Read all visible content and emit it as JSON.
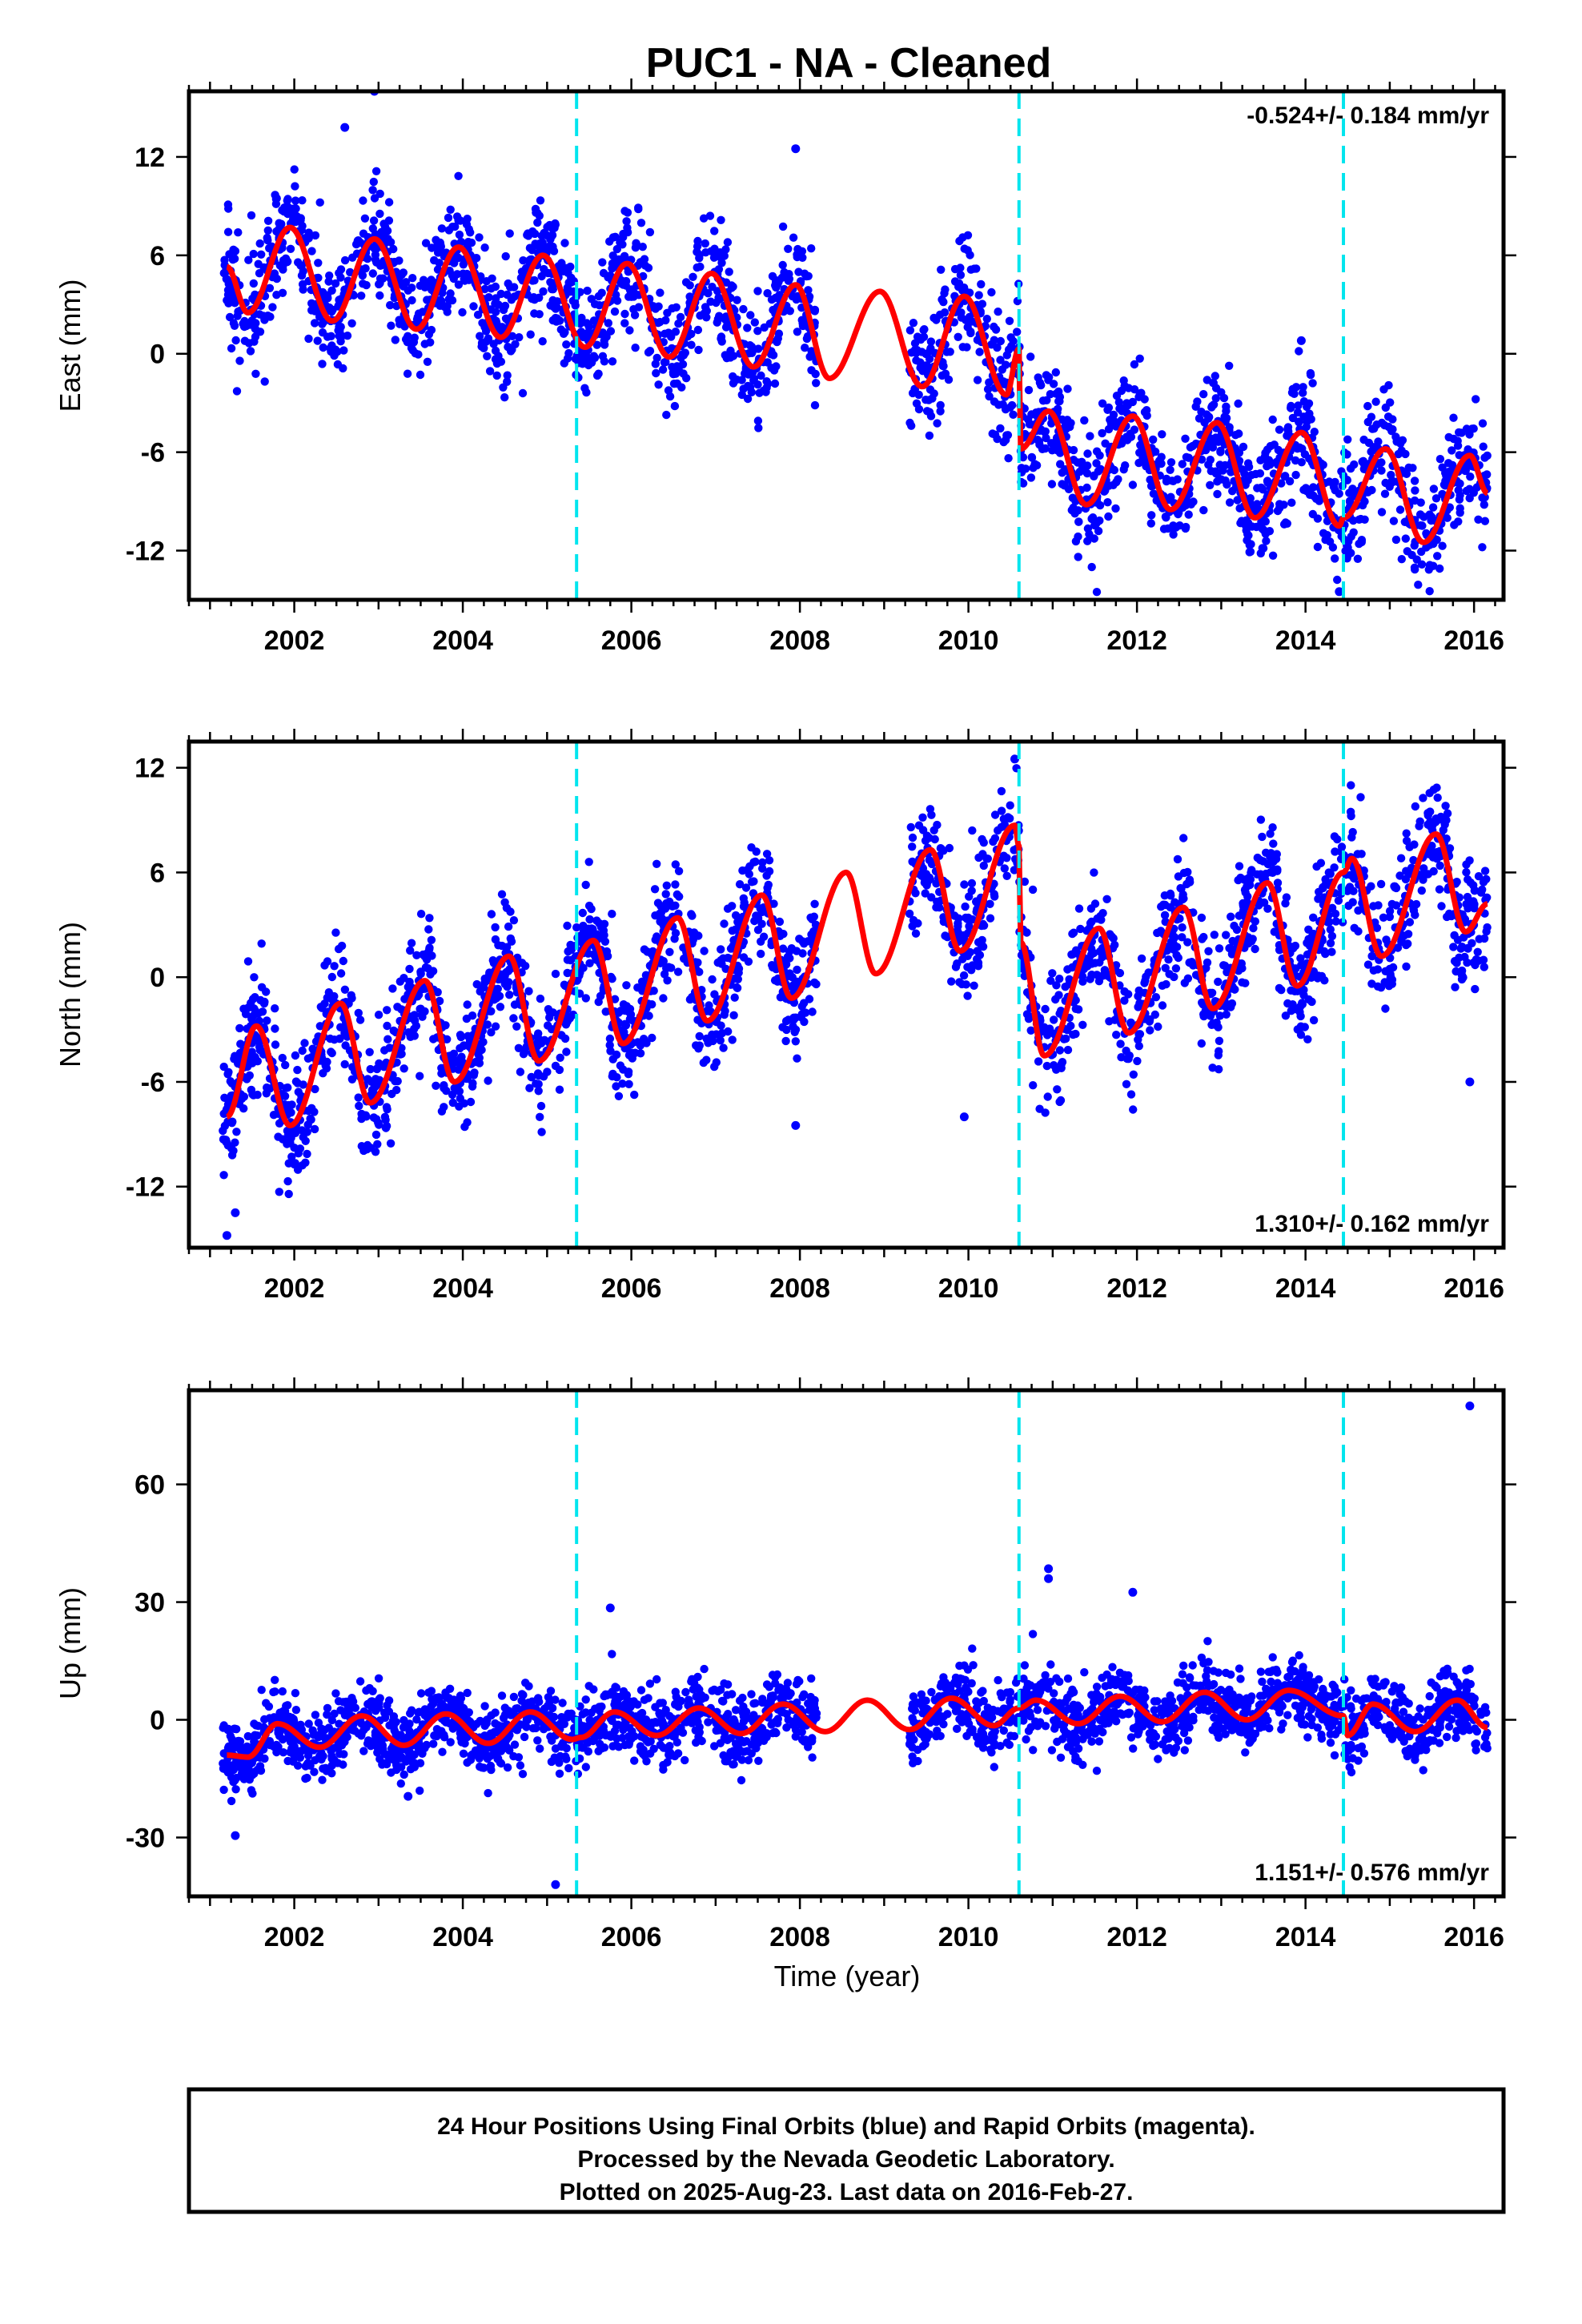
{
  "title": "PUC1  - NA - Cleaned",
  "xlabel": "Time (year)",
  "footer": {
    "line1": "24 Hour Positions Using Final Orbits (blue) and Rapid Orbits (magenta).",
    "line2": "Processed by the Nevada Geodetic Laboratory.",
    "line3": "Plotted on 2025-Aug-23. Last data on 2016-Feb-27."
  },
  "colors": {
    "points": "#0000ff",
    "fit": "#ff0000",
    "breaks": "#00e5ee"
  },
  "chart_data": [
    {
      "type": "scatter",
      "ylabel": "East (mm)",
      "rate_text": "-0.524+/- 0.184 mm/yr",
      "rate_position": "top-right",
      "xlim": [
        2000.75,
        2016.35
      ],
      "ylim": [
        -15,
        16
      ],
      "x_ticks": [
        2002,
        2004,
        2006,
        2008,
        2010,
        2012,
        2014,
        2016
      ],
      "y_ticks": [
        -12,
        -6,
        0,
        6,
        12
      ],
      "y_tick_labels": [
        "-12",
        "-6",
        "0",
        "6",
        "12"
      ],
      "equipment_breaks": [
        2005.35,
        2010.6,
        2014.45
      ],
      "data_range": [
        2001.15,
        2016.16
      ],
      "data_gap": [
        2008.2,
        2009.3
      ],
      "fit_model": {
        "segments": [
          {
            "start": 2001.15,
            "end": 2010.6,
            "offset": 2.5,
            "trend": -0.524,
            "annual_amp": 3.0,
            "annual_peak": 0.95
          },
          {
            "start": 2010.6,
            "end": 2016.16,
            "offset": -3.3,
            "trend": -0.524,
            "annual_amp": 3.0,
            "annual_peak": 0.95
          }
        ]
      },
      "scatter_sigma": 1.8,
      "fit": [
        {
          "x": 2001.2,
          "y": 5.3
        },
        {
          "x": 2001.45,
          "y": 2.5
        },
        {
          "x": 2001.95,
          "y": 7.7
        },
        {
          "x": 2002.45,
          "y": 2.0
        },
        {
          "x": 2002.95,
          "y": 7.0
        },
        {
          "x": 2003.45,
          "y": 1.5
        },
        {
          "x": 2003.95,
          "y": 6.5
        },
        {
          "x": 2004.45,
          "y": 1.0
        },
        {
          "x": 2004.95,
          "y": 6.0
        },
        {
          "x": 2005.45,
          "y": 0.4
        },
        {
          "x": 2005.95,
          "y": 5.5
        },
        {
          "x": 2006.45,
          "y": -0.2
        },
        {
          "x": 2006.95,
          "y": 4.9
        },
        {
          "x": 2007.45,
          "y": -0.8
        },
        {
          "x": 2007.95,
          "y": 4.2
        },
        {
          "x": 2008.35,
          "y": -1.5
        },
        {
          "x": 2008.95,
          "y": 3.8
        },
        {
          "x": 2009.45,
          "y": -2.0
        },
        {
          "x": 2009.95,
          "y": 3.5
        },
        {
          "x": 2010.45,
          "y": -2.5
        },
        {
          "x": 2010.6,
          "y": 0.3
        },
        {
          "x": 2010.62,
          "y": -5.8
        },
        {
          "x": 2010.95,
          "y": -3.5
        },
        {
          "x": 2011.4,
          "y": -9.2
        },
        {
          "x": 2011.95,
          "y": -3.8
        },
        {
          "x": 2012.4,
          "y": -9.5
        },
        {
          "x": 2012.95,
          "y": -4.2
        },
        {
          "x": 2013.4,
          "y": -10.0
        },
        {
          "x": 2013.95,
          "y": -4.8
        },
        {
          "x": 2014.4,
          "y": -10.5
        },
        {
          "x": 2014.45,
          "y": -10.0
        },
        {
          "x": 2014.95,
          "y": -5.8
        },
        {
          "x": 2015.4,
          "y": -11.5
        },
        {
          "x": 2015.95,
          "y": -6.2
        },
        {
          "x": 2016.16,
          "y": -8.5
        }
      ],
      "outliers": [
        {
          "x": 2002.95,
          "y": 16.0
        },
        {
          "x": 2002.6,
          "y": 13.8
        },
        {
          "x": 2007.95,
          "y": 12.5
        },
        {
          "x": 2013.95,
          "y": 0.8
        },
        {
          "x": 2014.4,
          "y": -14.5
        }
      ]
    },
    {
      "type": "scatter",
      "ylabel": "North (mm)",
      "rate_text": "1.310+/- 0.162 mm/yr",
      "rate_position": "bottom-right",
      "xlim": [
        2000.75,
        2016.35
      ],
      "ylim": [
        -15.5,
        13.5
      ],
      "x_ticks": [
        2002,
        2004,
        2006,
        2008,
        2010,
        2012,
        2014,
        2016
      ],
      "y_ticks": [
        -12,
        -6,
        0,
        6,
        12
      ],
      "y_tick_labels": [
        "-12",
        "-6",
        "0",
        "6",
        "12"
      ],
      "equipment_breaks": [
        2005.35,
        2010.6,
        2014.45
      ],
      "data_range": [
        2001.15,
        2016.16
      ],
      "data_gap": [
        2008.2,
        2009.3
      ],
      "scatter_sigma": 1.7,
      "fit": [
        {
          "x": 2001.2,
          "y": -8.0
        },
        {
          "x": 2001.55,
          "y": -2.8
        },
        {
          "x": 2001.95,
          "y": -8.5
        },
        {
          "x": 2002.55,
          "y": -1.5
        },
        {
          "x": 2002.9,
          "y": -7.2
        },
        {
          "x": 2003.55,
          "y": -0.2
        },
        {
          "x": 2003.9,
          "y": -6.0
        },
        {
          "x": 2004.55,
          "y": 1.2
        },
        {
          "x": 2004.9,
          "y": -4.8
        },
        {
          "x": 2005.55,
          "y": 2.1
        },
        {
          "x": 2005.9,
          "y": -3.8
        },
        {
          "x": 2006.55,
          "y": 3.4
        },
        {
          "x": 2006.9,
          "y": -2.5
        },
        {
          "x": 2007.55,
          "y": 4.7
        },
        {
          "x": 2007.9,
          "y": -1.2
        },
        {
          "x": 2008.55,
          "y": 6.0
        },
        {
          "x": 2008.9,
          "y": 0.2
        },
        {
          "x": 2009.55,
          "y": 7.3
        },
        {
          "x": 2009.9,
          "y": 1.5
        },
        {
          "x": 2010.55,
          "y": 8.7
        },
        {
          "x": 2010.6,
          "y": 7.5
        },
        {
          "x": 2010.62,
          "y": 2.0
        },
        {
          "x": 2010.9,
          "y": -4.5
        },
        {
          "x": 2011.55,
          "y": 2.8
        },
        {
          "x": 2011.9,
          "y": -3.2
        },
        {
          "x": 2012.55,
          "y": 4.0
        },
        {
          "x": 2012.9,
          "y": -1.8
        },
        {
          "x": 2013.55,
          "y": 5.4
        },
        {
          "x": 2013.9,
          "y": -0.5
        },
        {
          "x": 2014.45,
          "y": 6.0
        },
        {
          "x": 2014.55,
          "y": 6.8
        },
        {
          "x": 2014.9,
          "y": 1.2
        },
        {
          "x": 2015.55,
          "y": 8.2
        },
        {
          "x": 2015.9,
          "y": 2.6
        },
        {
          "x": 2016.16,
          "y": 4.2
        }
      ],
      "outliers": [
        {
          "x": 2001.2,
          "y": -14.8
        },
        {
          "x": 2001.3,
          "y": -13.5
        },
        {
          "x": 2010.55,
          "y": 12.5
        },
        {
          "x": 2009.95,
          "y": -8.0
        },
        {
          "x": 2007.95,
          "y": -8.5
        },
        {
          "x": 2015.95,
          "y": -6.0
        }
      ]
    },
    {
      "type": "scatter",
      "ylabel": "Up (mm)",
      "rate_text": "1.151+/- 0.576 mm/yr",
      "rate_position": "bottom-right",
      "xlim": [
        2000.75,
        2016.35
      ],
      "ylim": [
        -45,
        84
      ],
      "x_ticks": [
        2002,
        2004,
        2006,
        2008,
        2010,
        2012,
        2014,
        2016
      ],
      "y_ticks": [
        -30,
        0,
        30,
        60
      ],
      "y_tick_labels": [
        "-30",
        "0",
        "30",
        "60"
      ],
      "equipment_breaks": [
        2005.35,
        2010.6,
        2014.45
      ],
      "data_range": [
        2001.15,
        2016.16
      ],
      "data_gap": [
        2008.2,
        2009.3
      ],
      "scatter_sigma": 4.5,
      "fit": [
        {
          "x": 2001.2,
          "y": -9.0
        },
        {
          "x": 2001.45,
          "y": -9.5
        },
        {
          "x": 2001.8,
          "y": -1.0
        },
        {
          "x": 2002.3,
          "y": -7.0
        },
        {
          "x": 2002.8,
          "y": 1.0
        },
        {
          "x": 2003.3,
          "y": -6.5
        },
        {
          "x": 2003.8,
          "y": 1.5
        },
        {
          "x": 2004.3,
          "y": -6.0
        },
        {
          "x": 2004.8,
          "y": 2.0
        },
        {
          "x": 2005.3,
          "y": -5.0
        },
        {
          "x": 2005.4,
          "y": -4.5
        },
        {
          "x": 2005.8,
          "y": 2.0
        },
        {
          "x": 2006.3,
          "y": -4.0
        },
        {
          "x": 2006.8,
          "y": 3.0
        },
        {
          "x": 2007.3,
          "y": -3.5
        },
        {
          "x": 2007.8,
          "y": 4.0
        },
        {
          "x": 2008.3,
          "y": -3.0
        },
        {
          "x": 2008.8,
          "y": 5.0
        },
        {
          "x": 2009.3,
          "y": -2.5
        },
        {
          "x": 2009.8,
          "y": 5.5
        },
        {
          "x": 2010.3,
          "y": -1.5
        },
        {
          "x": 2010.6,
          "y": 3.0
        },
        {
          "x": 2010.8,
          "y": 5.0
        },
        {
          "x": 2011.3,
          "y": -1.0
        },
        {
          "x": 2011.8,
          "y": 6.0
        },
        {
          "x": 2012.3,
          "y": -0.5
        },
        {
          "x": 2012.8,
          "y": 7.0
        },
        {
          "x": 2013.3,
          "y": 0.0
        },
        {
          "x": 2013.8,
          "y": 7.5
        },
        {
          "x": 2014.45,
          "y": 1.0
        },
        {
          "x": 2014.5,
          "y": -4.0
        },
        {
          "x": 2014.8,
          "y": 4.0
        },
        {
          "x": 2015.3,
          "y": -3.0
        },
        {
          "x": 2015.8,
          "y": 5.0
        },
        {
          "x": 2016.16,
          "y": -2.0
        }
      ],
      "outliers": [
        {
          "x": 2015.95,
          "y": 80.0
        },
        {
          "x": 2010.95,
          "y": 38.5
        },
        {
          "x": 2010.95,
          "y": 36.0
        },
        {
          "x": 2011.95,
          "y": 32.5
        },
        {
          "x": 2005.75,
          "y": 28.5
        },
        {
          "x": 2005.1,
          "y": -42.0
        },
        {
          "x": 2001.3,
          "y": -29.5
        },
        {
          "x": 2003.35,
          "y": -19.5
        }
      ]
    }
  ]
}
